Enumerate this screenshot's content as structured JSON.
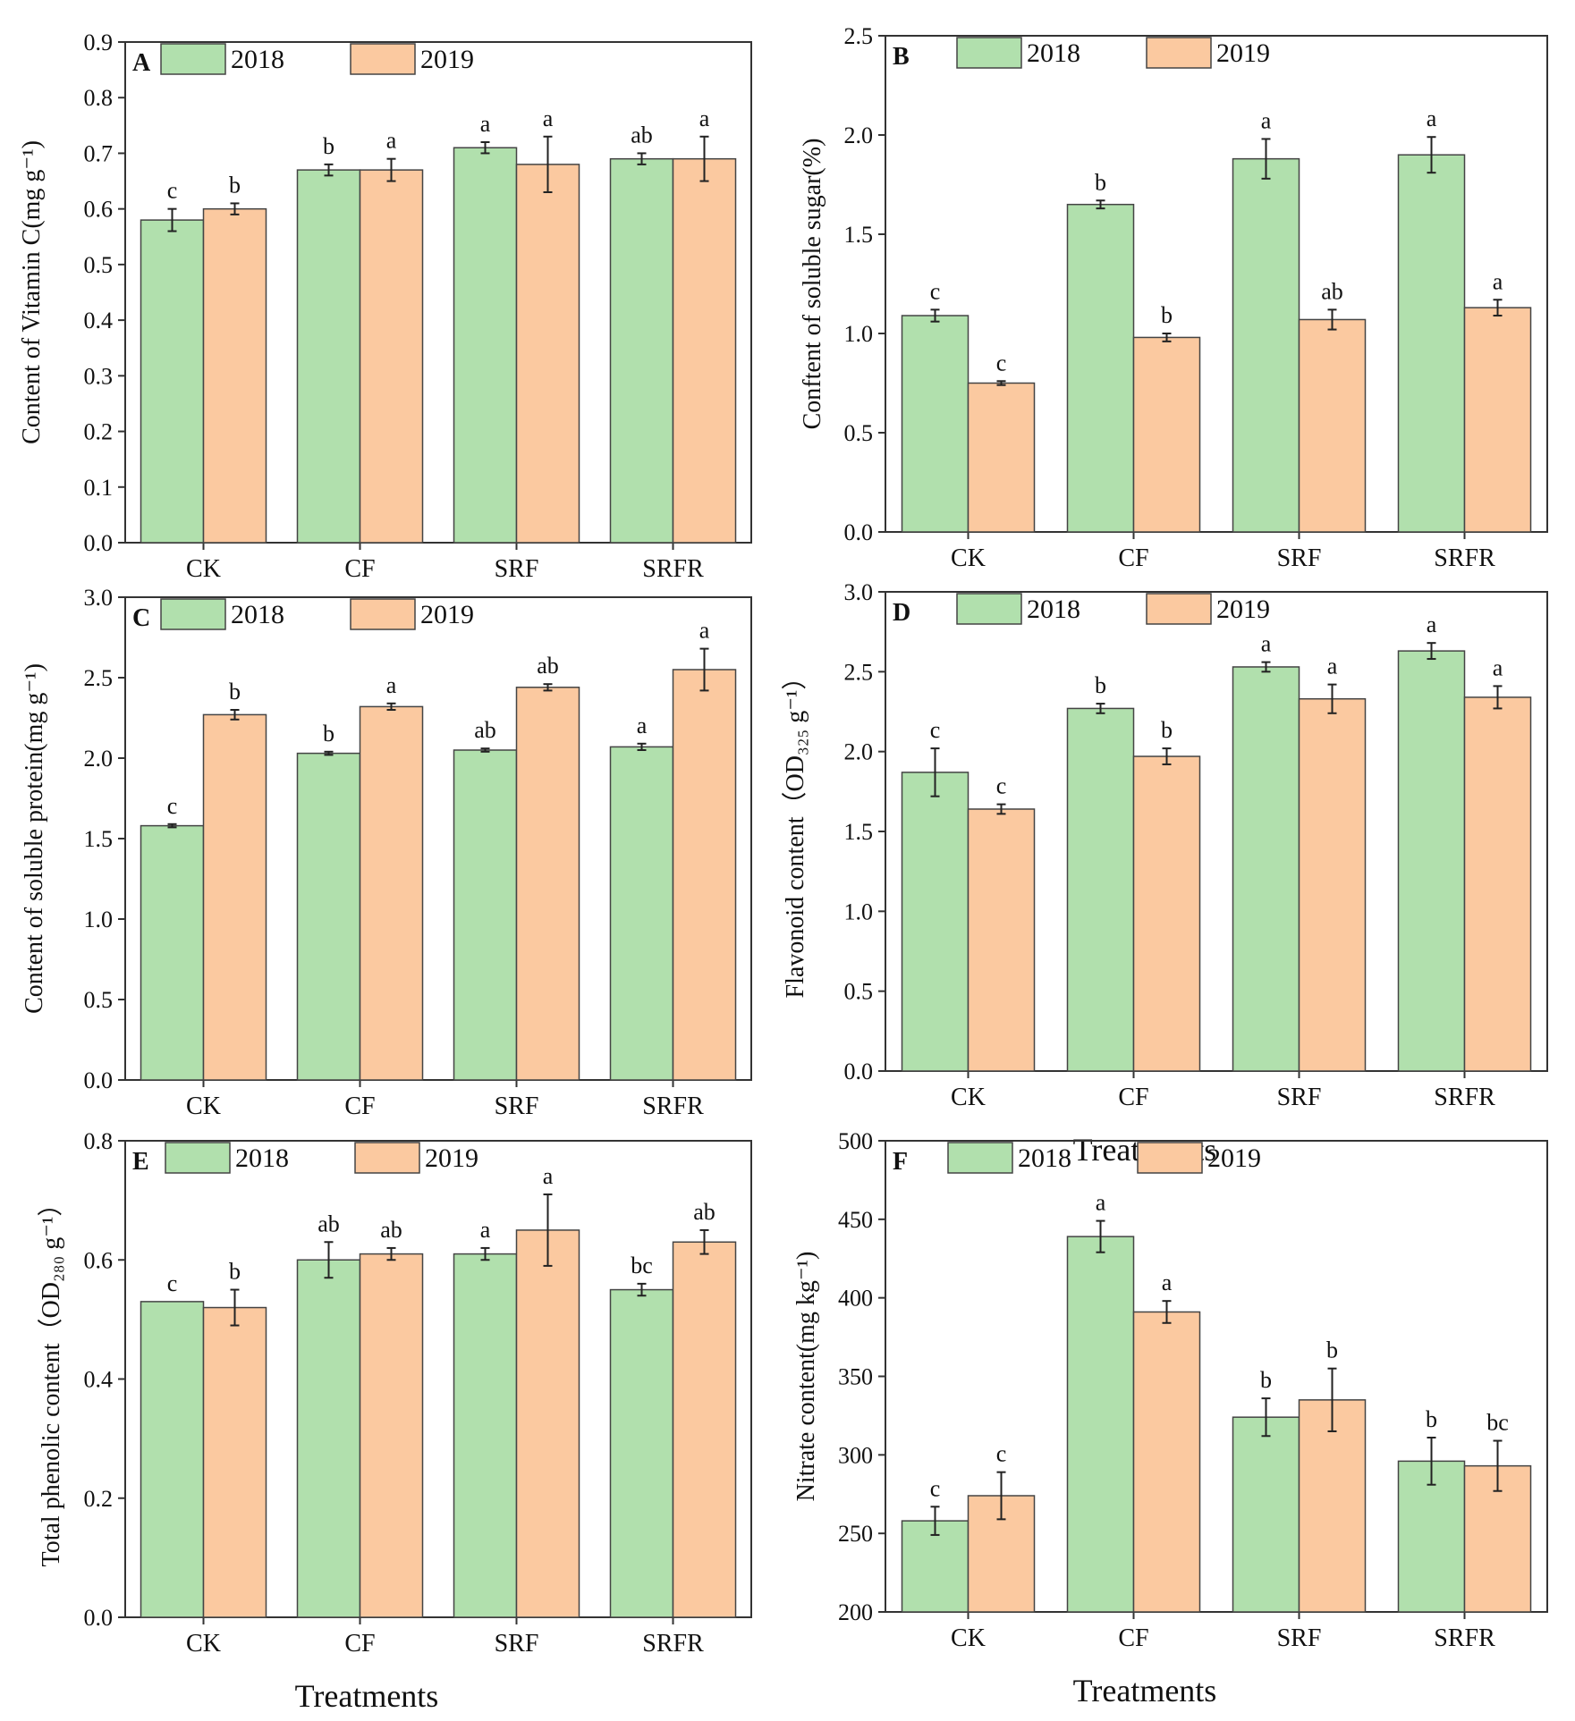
{
  "chart_data": [
    {
      "panel": "A",
      "type": "bar",
      "categories": [
        "CK",
        "CF",
        "SRF",
        "SRFR"
      ],
      "series": [
        {
          "name": "2018",
          "values": [
            0.58,
            0.67,
            0.71,
            0.69
          ],
          "errors": [
            0.02,
            0.01,
            0.01,
            0.01
          ],
          "letters": [
            "c",
            "b",
            "a",
            "ab"
          ]
        },
        {
          "name": "2019",
          "values": [
            0.6,
            0.67,
            0.68,
            0.69
          ],
          "errors": [
            0.01,
            0.02,
            0.05,
            0.04
          ],
          "letters": [
            "b",
            "a",
            "a",
            "a"
          ]
        }
      ],
      "ylabel": "Content of Vitamin C(mg g⁻¹)",
      "ylim": [
        0,
        0.9
      ],
      "yticks": [
        "0.0",
        "0.1",
        "0.2",
        "0.3",
        "0.4",
        "0.5",
        "0.6",
        "0.7",
        "0.8",
        "0.9"
      ],
      "xlabel": ""
    },
    {
      "panel": "B",
      "type": "bar",
      "categories": [
        "CK",
        "CF",
        "SRF",
        "SRFR"
      ],
      "series": [
        {
          "name": "2018",
          "values": [
            1.09,
            1.65,
            1.88,
            1.9
          ],
          "errors": [
            0.03,
            0.02,
            0.1,
            0.09
          ],
          "letters": [
            "c",
            "b",
            "a",
            "a"
          ]
        },
        {
          "name": "2019",
          "values": [
            0.75,
            0.98,
            1.07,
            1.13
          ],
          "errors": [
            0.01,
            0.02,
            0.05,
            0.04
          ],
          "letters": [
            "c",
            "b",
            "ab",
            "a"
          ]
        }
      ],
      "ylabel": "Conftent of soluble sugar(%)",
      "ylim": [
        0,
        2.5
      ],
      "yticks": [
        "0.0",
        "0.5",
        "1.0",
        "1.5",
        "2.0",
        "2.5"
      ],
      "xlabel": ""
    },
    {
      "panel": "C",
      "type": "bar",
      "categories": [
        "CK",
        "CF",
        "SRF",
        "SRFR"
      ],
      "series": [
        {
          "name": "2018",
          "values": [
            1.58,
            2.03,
            2.05,
            2.07
          ],
          "errors": [
            0.01,
            0.01,
            0.01,
            0.02
          ],
          "letters": [
            "c",
            "b",
            "ab",
            "a"
          ]
        },
        {
          "name": "2019",
          "values": [
            2.27,
            2.32,
            2.44,
            2.55
          ],
          "errors": [
            0.03,
            0.02,
            0.02,
            0.13
          ],
          "letters": [
            "b",
            "a",
            "ab",
            "a"
          ]
        }
      ],
      "ylabel": "Content of soluble protein(mg g⁻¹)",
      "ylim": [
        0,
        3.0
      ],
      "yticks": [
        "0.0",
        "0.5",
        "1.0",
        "1.5",
        "2.0",
        "2.5",
        "3.0"
      ],
      "xlabel": ""
    },
    {
      "panel": "D",
      "type": "bar",
      "categories": [
        "CK",
        "CF",
        "SRF",
        "SRFR"
      ],
      "series": [
        {
          "name": "2018",
          "values": [
            1.87,
            2.27,
            2.53,
            2.63
          ],
          "errors": [
            0.15,
            0.03,
            0.03,
            0.05
          ],
          "letters": [
            "c",
            "b",
            "a",
            "a"
          ]
        },
        {
          "name": "2019",
          "values": [
            1.64,
            1.97,
            2.33,
            2.34
          ],
          "errors": [
            0.03,
            0.05,
            0.09,
            0.07
          ],
          "letters": [
            "c",
            "b",
            "a",
            "a"
          ]
        }
      ],
      "ylabel": "Flavonoid content（OD₃₂₅ g⁻¹）",
      "ylim": [
        0,
        3.0
      ],
      "yticks": [
        "0.0",
        "0.5",
        "1.0",
        "1.5",
        "2.0",
        "2.5",
        "3.0"
      ],
      "xlabel": "Treatments"
    },
    {
      "panel": "E",
      "type": "bar",
      "categories": [
        "CK",
        "CF",
        "SRF",
        "SRFR"
      ],
      "series": [
        {
          "name": "2018",
          "values": [
            0.53,
            0.6,
            0.61,
            0.55
          ],
          "errors": [
            0.0,
            0.03,
            0.01,
            0.01
          ],
          "letters": [
            "c",
            "ab",
            "a",
            "bc"
          ]
        },
        {
          "name": "2019",
          "values": [
            0.52,
            0.61,
            0.65,
            0.63
          ],
          "errors": [
            0.03,
            0.01,
            0.06,
            0.02
          ],
          "letters": [
            "b",
            "ab",
            "a",
            "ab"
          ]
        }
      ],
      "ylabel": "Total phenolic content（OD₂₈₀ g⁻¹）",
      "ylim": [
        0,
        0.8
      ],
      "yticks": [
        "0.0",
        "0.2",
        "0.4",
        "0.6",
        "0.8"
      ],
      "xlabel": "Treatments"
    },
    {
      "panel": "F",
      "type": "bar",
      "categories": [
        "CK",
        "CF",
        "SRF",
        "SRFR"
      ],
      "series": [
        {
          "name": "2018",
          "values": [
            258,
            439,
            324,
            296
          ],
          "errors": [
            9,
            10,
            12,
            15
          ],
          "letters": [
            "c",
            "a",
            "b",
            "b"
          ]
        },
        {
          "name": "2019",
          "values": [
            274,
            391,
            335,
            293
          ],
          "errors": [
            15,
            7,
            20,
            16
          ],
          "letters": [
            "c",
            "a",
            "b",
            "bc"
          ]
        }
      ],
      "ylabel": "Nitrate content(mg kg⁻¹)",
      "ylim": [
        200,
        500
      ],
      "yticks": [
        "200",
        "250",
        "300",
        "350",
        "400",
        "450",
        "500"
      ],
      "xlabel": "Treatments"
    }
  ],
  "colors": {
    "2018": "#b1e0ad",
    "2019": "#fbc9a0",
    "stroke": "#444444"
  }
}
